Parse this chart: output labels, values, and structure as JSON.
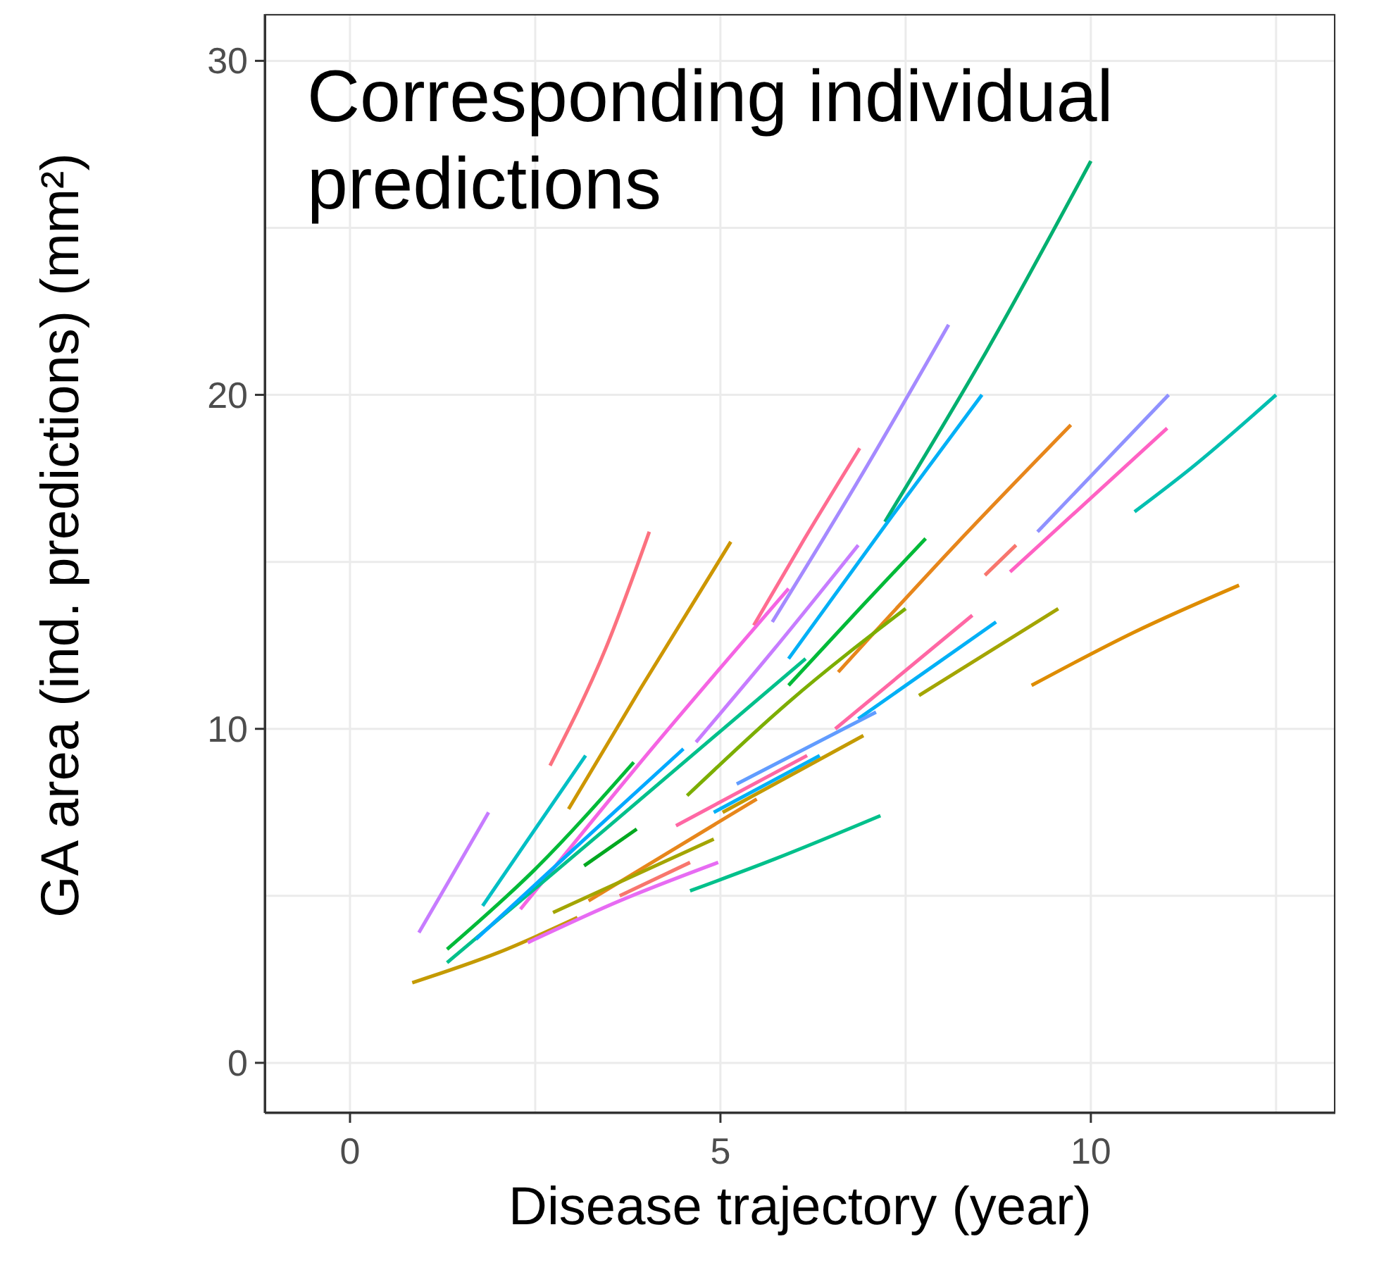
{
  "chart_data": {
    "type": "line",
    "title": "Corresponding individual predictions",
    "xlabel": "Disease trajectory (year)",
    "ylabel": "GA area (ind. predictions) (mm²)",
    "xlim": [
      -1.15,
      13.3
    ],
    "ylim": [
      -1.5,
      31.4
    ],
    "xticks": [
      0,
      {
        "value": 2.5,
        "label": null
      },
      5,
      {
        "value": 7.5,
        "label": null
      },
      10,
      {
        "value": 12.5,
        "label": null
      }
    ],
    "yticks": [
      0,
      {
        "value": 5,
        "label": null
      },
      10,
      {
        "value": 15,
        "label": null
      },
      20,
      {
        "value": 25,
        "label": null
      },
      30
    ],
    "grid": true,
    "marker": "none",
    "line_style": "solid",
    "series": [
      {
        "color": "#c77cff",
        "x": [
          0.93,
          1.35,
          1.87
        ],
        "values": [
          3.9,
          5.5,
          7.5
        ]
      },
      {
        "color": "#fc717f",
        "x": [
          2.7,
          3.45,
          4.04
        ],
        "values": [
          8.9,
          12.4,
          15.9
        ]
      },
      {
        "color": "#cd9600",
        "x": [
          2.95,
          3.92,
          5.14
        ],
        "values": [
          7.6,
          11.2,
          15.6
        ]
      },
      {
        "color": "#00bfc4",
        "x": [
          1.79,
          2.5,
          3.18
        ],
        "values": [
          4.7,
          7.0,
          9.2
        ]
      },
      {
        "color": "#00ba38",
        "x": [
          1.31,
          2.5,
          3.83
        ],
        "values": [
          3.4,
          5.8,
          9.0
        ]
      },
      {
        "color": "#00b070",
        "x": [
          7.22,
          8.59,
          10.0
        ],
        "values": [
          16.2,
          21.3,
          27.0
        ]
      },
      {
        "color": "#a58aff",
        "x": [
          5.7,
          6.88,
          8.08
        ],
        "values": [
          13.2,
          17.5,
          22.1
        ]
      },
      {
        "color": "#c77cff",
        "x": [
          4.67,
          5.73,
          6.86
        ],
        "values": [
          9.6,
          12.4,
          15.5
        ]
      },
      {
        "color": "#ff6c91",
        "x": [
          5.45,
          6.11,
          6.88
        ],
        "values": [
          13.1,
          15.6,
          18.4
        ]
      },
      {
        "color": "#f564e3",
        "x": [
          2.3,
          4.11,
          5.92
        ],
        "values": [
          4.6,
          9.5,
          14.2
        ]
      },
      {
        "color": "#00b0f6",
        "x": [
          5.92,
          7.26,
          8.53
        ],
        "values": [
          12.1,
          16.2,
          20.0
        ]
      },
      {
        "color": "#00ba38",
        "x": [
          5.92,
          6.88,
          7.77
        ],
        "values": [
          11.3,
          13.6,
          15.7
        ]
      },
      {
        "color": "#e7861b",
        "x": [
          6.59,
          8.21,
          9.73
        ],
        "values": [
          11.7,
          15.6,
          19.1
        ]
      },
      {
        "color": "#f8766d",
        "x": [
          8.57,
          8.99
        ],
        "values": [
          14.6,
          15.5
        ]
      },
      {
        "color": "#ff61c3",
        "x": [
          8.91,
          11.03
        ],
        "values": [
          14.7,
          19.0
        ]
      },
      {
        "color": "#8f91ff",
        "x": [
          9.28,
          11.05
        ],
        "values": [
          15.9,
          20.0
        ]
      },
      {
        "color": "#00bfb0",
        "x": [
          10.59,
          11.35,
          12.5
        ],
        "values": [
          16.5,
          17.8,
          20.0
        ]
      },
      {
        "color": "#de8c00",
        "x": [
          9.2,
          10.59,
          12.0
        ],
        "values": [
          11.3,
          12.9,
          14.3
        ]
      },
      {
        "color": "#a3a500",
        "x": [
          7.68,
          9.56
        ],
        "values": [
          11.0,
          13.6
        ]
      },
      {
        "color": "#00b0f6",
        "x": [
          6.86,
          8.72
        ],
        "values": [
          10.3,
          13.2
        ]
      },
      {
        "color": "#ff67a4",
        "x": [
          6.55,
          8.4
        ],
        "values": [
          10.0,
          13.4
        ]
      },
      {
        "color": "#7cae00",
        "x": [
          4.55,
          5.92,
          7.5
        ],
        "values": [
          8.0,
          10.8,
          13.6
        ]
      },
      {
        "color": "#00c08b",
        "x": [
          1.31,
          3.45,
          6.15
        ],
        "values": [
          3.0,
          7.0,
          12.1
        ]
      },
      {
        "color": "#00a9ff",
        "x": [
          1.7,
          3.07,
          4.5
        ],
        "values": [
          3.7,
          6.5,
          9.4
        ]
      },
      {
        "color": "#00a81f",
        "x": [
          3.16,
          3.87
        ],
        "values": [
          5.9,
          7.0
        ]
      },
      {
        "color": "#c49a00",
        "x": [
          0.84,
          2.0,
          3.07
        ],
        "values": [
          2.4,
          3.3,
          4.35
        ]
      },
      {
        "color": "#e76bf3",
        "x": [
          2.4,
          3.64,
          4.97
        ],
        "values": [
          3.6,
          4.85,
          6.0
        ]
      },
      {
        "color": "#f8766d",
        "x": [
          3.64,
          4.59
        ],
        "values": [
          5.0,
          6.0
        ]
      },
      {
        "color": "#e7861b",
        "x": [
          3.22,
          5.49
        ],
        "values": [
          4.85,
          7.9
        ]
      },
      {
        "color": "#00c08b",
        "x": [
          4.59,
          5.73,
          7.16
        ],
        "values": [
          5.15,
          6.1,
          7.4
        ]
      },
      {
        "color": "#ff67a4",
        "x": [
          4.4,
          6.17
        ],
        "values": [
          7.1,
          9.2
        ]
      },
      {
        "color": "#619cff",
        "x": [
          5.22,
          7.1
        ],
        "values": [
          8.35,
          10.5
        ]
      },
      {
        "color": "#c49a00",
        "x": [
          5.03,
          6.93
        ],
        "values": [
          7.5,
          9.8
        ]
      },
      {
        "color": "#00b0f6",
        "x": [
          4.91,
          6.34
        ],
        "values": [
          7.5,
          9.2
        ]
      },
      {
        "color": "#a3a500",
        "x": [
          2.74,
          4.91
        ],
        "values": [
          4.5,
          6.7
        ]
      }
    ]
  }
}
